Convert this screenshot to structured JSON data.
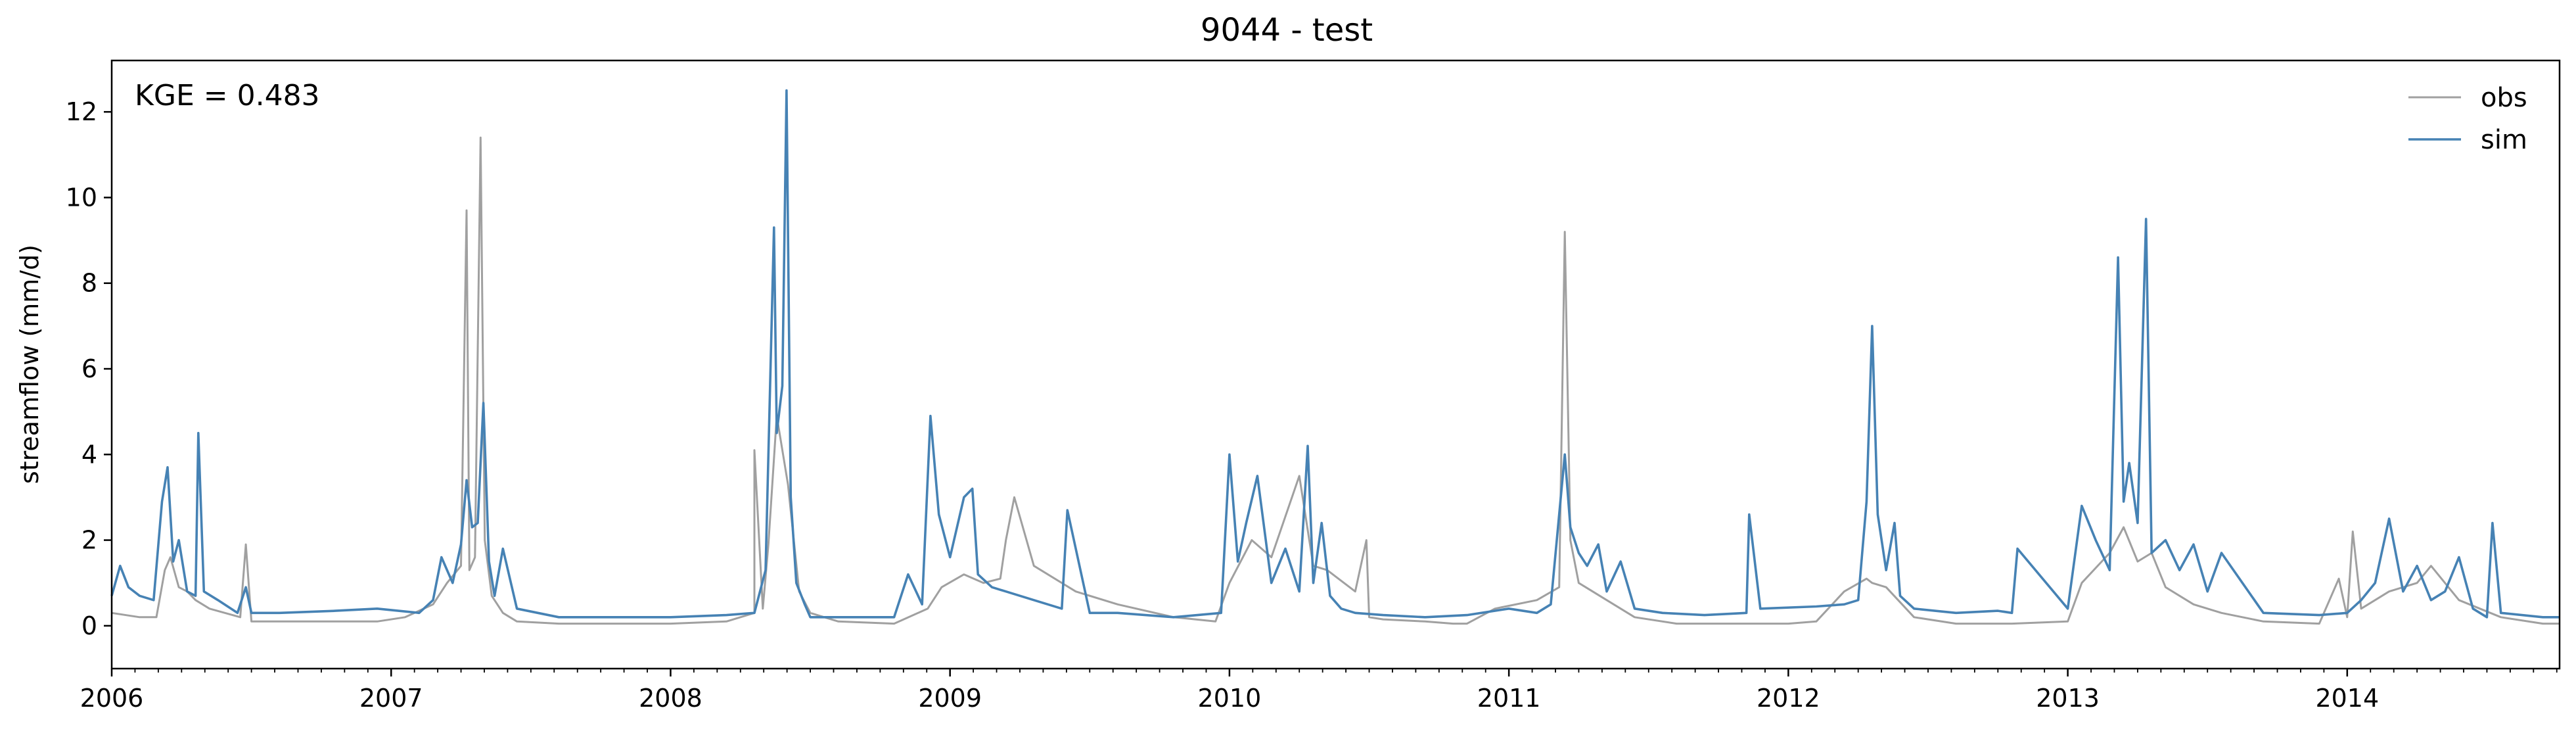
{
  "chart_data": {
    "type": "line",
    "title": "9044 - test",
    "xlabel": "",
    "ylabel": "streamflow (mm/d)",
    "annotation": "KGE = 0.483",
    "xlim": [
      2006.0,
      2014.76
    ],
    "ylim": [
      -1.0,
      13.2
    ],
    "yticks": [
      0,
      2,
      4,
      6,
      8,
      10,
      12
    ],
    "xticks": [
      2006,
      2007,
      2008,
      2009,
      2010,
      2011,
      2012,
      2013,
      2014
    ],
    "grid": false,
    "legend": {
      "position": "top-right",
      "entries": [
        "obs",
        "sim"
      ]
    },
    "series": [
      {
        "name": "obs",
        "color": "#a0a0a0",
        "x": [
          2006.0,
          2006.1,
          2006.16,
          2006.19,
          2006.21,
          2006.24,
          2006.27,
          2006.3,
          2006.35,
          2006.46,
          2006.48,
          2006.5,
          2006.6,
          2006.8,
          2006.95,
          2007.05,
          2007.15,
          2007.2,
          2007.25,
          2007.27,
          2007.28,
          2007.3,
          2007.32,
          2007.335,
          2007.36,
          2007.4,
          2007.45,
          2007.6,
          2007.8,
          2008.0,
          2008.2,
          2008.3,
          2008.3,
          2008.33,
          2008.35,
          2008.38,
          2008.42,
          2008.46,
          2008.5,
          2008.6,
          2008.8,
          2008.92,
          2008.97,
          2009.05,
          2009.12,
          2009.18,
          2009.2,
          2009.23,
          2009.3,
          2009.45,
          2009.6,
          2009.8,
          2009.95,
          2010.0,
          2010.08,
          2010.15,
          2010.25,
          2010.3,
          2010.35,
          2010.45,
          2010.49,
          2010.5,
          2010.55,
          2010.7,
          2010.8,
          2010.85,
          2010.95,
          2011.1,
          2011.18,
          2011.2,
          2011.22,
          2011.25,
          2011.35,
          2011.45,
          2011.6,
          2011.8,
          2012.0,
          2012.1,
          2012.2,
          2012.28,
          2012.3,
          2012.35,
          2012.45,
          2012.6,
          2012.8,
          2013.0,
          2013.05,
          2013.15,
          2013.2,
          2013.25,
          2013.3,
          2013.35,
          2013.45,
          2013.55,
          2013.7,
          2013.9,
          2013.97,
          2014.0,
          2014.02,
          2014.05,
          2014.15,
          2014.25,
          2014.3,
          2014.4,
          2014.55,
          2014.7,
          2014.76
        ],
        "values": [
          0.3,
          0.2,
          0.2,
          1.3,
          1.6,
          0.9,
          0.8,
          0.6,
          0.4,
          0.2,
          1.9,
          0.1,
          0.1,
          0.1,
          0.1,
          0.2,
          0.5,
          1.0,
          1.4,
          9.7,
          1.3,
          1.6,
          11.4,
          2.0,
          0.7,
          0.3,
          0.1,
          0.05,
          0.05,
          0.05,
          0.1,
          0.3,
          4.1,
          0.4,
          1.9,
          4.9,
          3.3,
          0.8,
          0.3,
          0.1,
          0.05,
          0.4,
          0.9,
          1.2,
          1.0,
          1.1,
          2.0,
          3.0,
          1.4,
          0.8,
          0.5,
          0.2,
          0.1,
          1.0,
          2.0,
          1.6,
          3.5,
          1.4,
          1.3,
          0.8,
          2.0,
          0.2,
          0.15,
          0.1,
          0.05,
          0.05,
          0.4,
          0.6,
          0.9,
          9.2,
          2.0,
          1.0,
          0.6,
          0.2,
          0.05,
          0.05,
          0.05,
          0.1,
          0.8,
          1.1,
          1.0,
          0.9,
          0.2,
          0.05,
          0.05,
          0.1,
          1.0,
          1.7,
          2.3,
          1.5,
          1.7,
          0.9,
          0.5,
          0.3,
          0.1,
          0.05,
          1.1,
          0.2,
          2.2,
          0.4,
          0.8,
          1.0,
          1.4,
          0.6,
          0.2,
          0.05,
          0.05
        ]
      },
      {
        "name": "sim",
        "color": "#4682b4",
        "x": [
          2006.0,
          2006.03,
          2006.06,
          2006.1,
          2006.15,
          2006.18,
          2006.2,
          2006.22,
          2006.24,
          2006.27,
          2006.3,
          2006.31,
          2006.33,
          2006.38,
          2006.45,
          2006.48,
          2006.5,
          2006.6,
          2006.8,
          2006.95,
          2007.1,
          2007.15,
          2007.18,
          2007.22,
          2007.25,
          2007.27,
          2007.29,
          2007.31,
          2007.33,
          2007.35,
          2007.37,
          2007.4,
          2007.45,
          2007.6,
          2007.8,
          2008.0,
          2008.2,
          2008.3,
          2008.34,
          2008.37,
          2008.38,
          2008.4,
          2008.415,
          2008.43,
          2008.45,
          2008.48,
          2008.5,
          2008.6,
          2008.8,
          2008.85,
          2008.9,
          2008.93,
          2008.96,
          2009.0,
          2009.05,
          2009.08,
          2009.1,
          2009.15,
          2009.2,
          2009.3,
          2009.4,
          2009.42,
          2009.5,
          2009.6,
          2009.8,
          2009.97,
          2010.0,
          2010.03,
          2010.06,
          2010.1,
          2010.15,
          2010.2,
          2010.25,
          2010.28,
          2010.3,
          2010.33,
          2010.36,
          2010.4,
          2010.45,
          2010.55,
          2010.7,
          2010.85,
          2011.0,
          2011.1,
          2011.15,
          2011.2,
          2011.22,
          2011.25,
          2011.28,
          2011.32,
          2011.35,
          2011.4,
          2011.45,
          2011.55,
          2011.7,
          2011.85,
          2011.86,
          2011.9,
          2012.1,
          2012.2,
          2012.25,
          2012.28,
          2012.3,
          2012.32,
          2012.35,
          2012.38,
          2012.4,
          2012.45,
          2012.6,
          2012.75,
          2012.8,
          2012.82,
          2013.0,
          2013.05,
          2013.1,
          2013.15,
          2013.18,
          2013.2,
          2013.22,
          2013.25,
          2013.28,
          2013.3,
          2013.35,
          2013.4,
          2013.45,
          2013.5,
          2013.55,
          2013.7,
          2013.9,
          2014.0,
          2014.05,
          2014.1,
          2014.15,
          2014.2,
          2014.25,
          2014.3,
          2014.35,
          2014.4,
          2014.45,
          2014.5,
          2014.52,
          2014.55,
          2014.7,
          2014.76
        ],
        "values": [
          0.7,
          1.4,
          0.9,
          0.7,
          0.6,
          2.9,
          3.7,
          1.5,
          2.0,
          0.8,
          0.7,
          4.5,
          0.8,
          0.6,
          0.3,
          0.9,
          0.3,
          0.3,
          0.35,
          0.4,
          0.3,
          0.6,
          1.6,
          1.0,
          1.9,
          3.4,
          2.3,
          2.4,
          5.2,
          1.5,
          0.7,
          1.8,
          0.4,
          0.2,
          0.2,
          0.2,
          0.25,
          0.3,
          1.3,
          9.3,
          4.5,
          5.6,
          12.5,
          3.0,
          1.0,
          0.5,
          0.2,
          0.2,
          0.2,
          1.2,
          0.5,
          4.9,
          2.6,
          1.6,
          3.0,
          3.2,
          1.2,
          0.9,
          0.8,
          0.6,
          0.4,
          2.7,
          0.3,
          0.3,
          0.2,
          0.3,
          4.0,
          1.5,
          2.4,
          3.5,
          1.0,
          1.8,
          0.8,
          4.2,
          1.0,
          2.4,
          0.7,
          0.4,
          0.3,
          0.25,
          0.2,
          0.25,
          0.4,
          0.3,
          0.5,
          4.0,
          2.3,
          1.7,
          1.4,
          1.9,
          0.8,
          1.5,
          0.4,
          0.3,
          0.25,
          0.3,
          2.6,
          0.4,
          0.45,
          0.5,
          0.6,
          2.9,
          7.0,
          2.6,
          1.3,
          2.4,
          0.7,
          0.4,
          0.3,
          0.35,
          0.3,
          1.8,
          0.4,
          2.8,
          2.0,
          1.3,
          8.6,
          2.9,
          3.8,
          2.4,
          9.5,
          1.7,
          2.0,
          1.3,
          1.9,
          0.8,
          1.7,
          0.3,
          0.25,
          0.3,
          0.6,
          1.0,
          2.5,
          0.8,
          1.4,
          0.6,
          0.8,
          1.6,
          0.4,
          0.2,
          2.4,
          0.3,
          0.2,
          0.2
        ]
      }
    ]
  }
}
